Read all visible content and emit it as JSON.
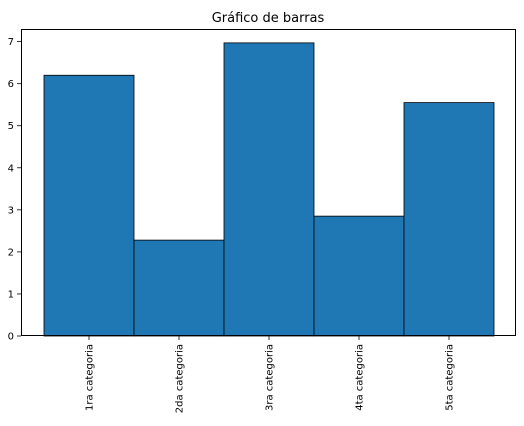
{
  "chart_data": {
    "type": "bar",
    "title": "Gráfico de barras",
    "xlabel": "",
    "ylabel": "",
    "categories": [
      "1ra categoria",
      "2da categoria",
      "3ra categoria",
      "4ta categoria",
      "5ta categoria"
    ],
    "values": [
      6.2,
      2.28,
      6.97,
      2.85,
      5.55
    ],
    "ylim": [
      0,
      7.3
    ],
    "yticks": [
      "0",
      "1",
      "2",
      "3",
      "4",
      "5",
      "6",
      "7"
    ],
    "xtick_rotation": "vertical",
    "grid": false,
    "legend": "none",
    "bar_color": "#1f77b4",
    "bar_edge_color": "#000000"
  }
}
